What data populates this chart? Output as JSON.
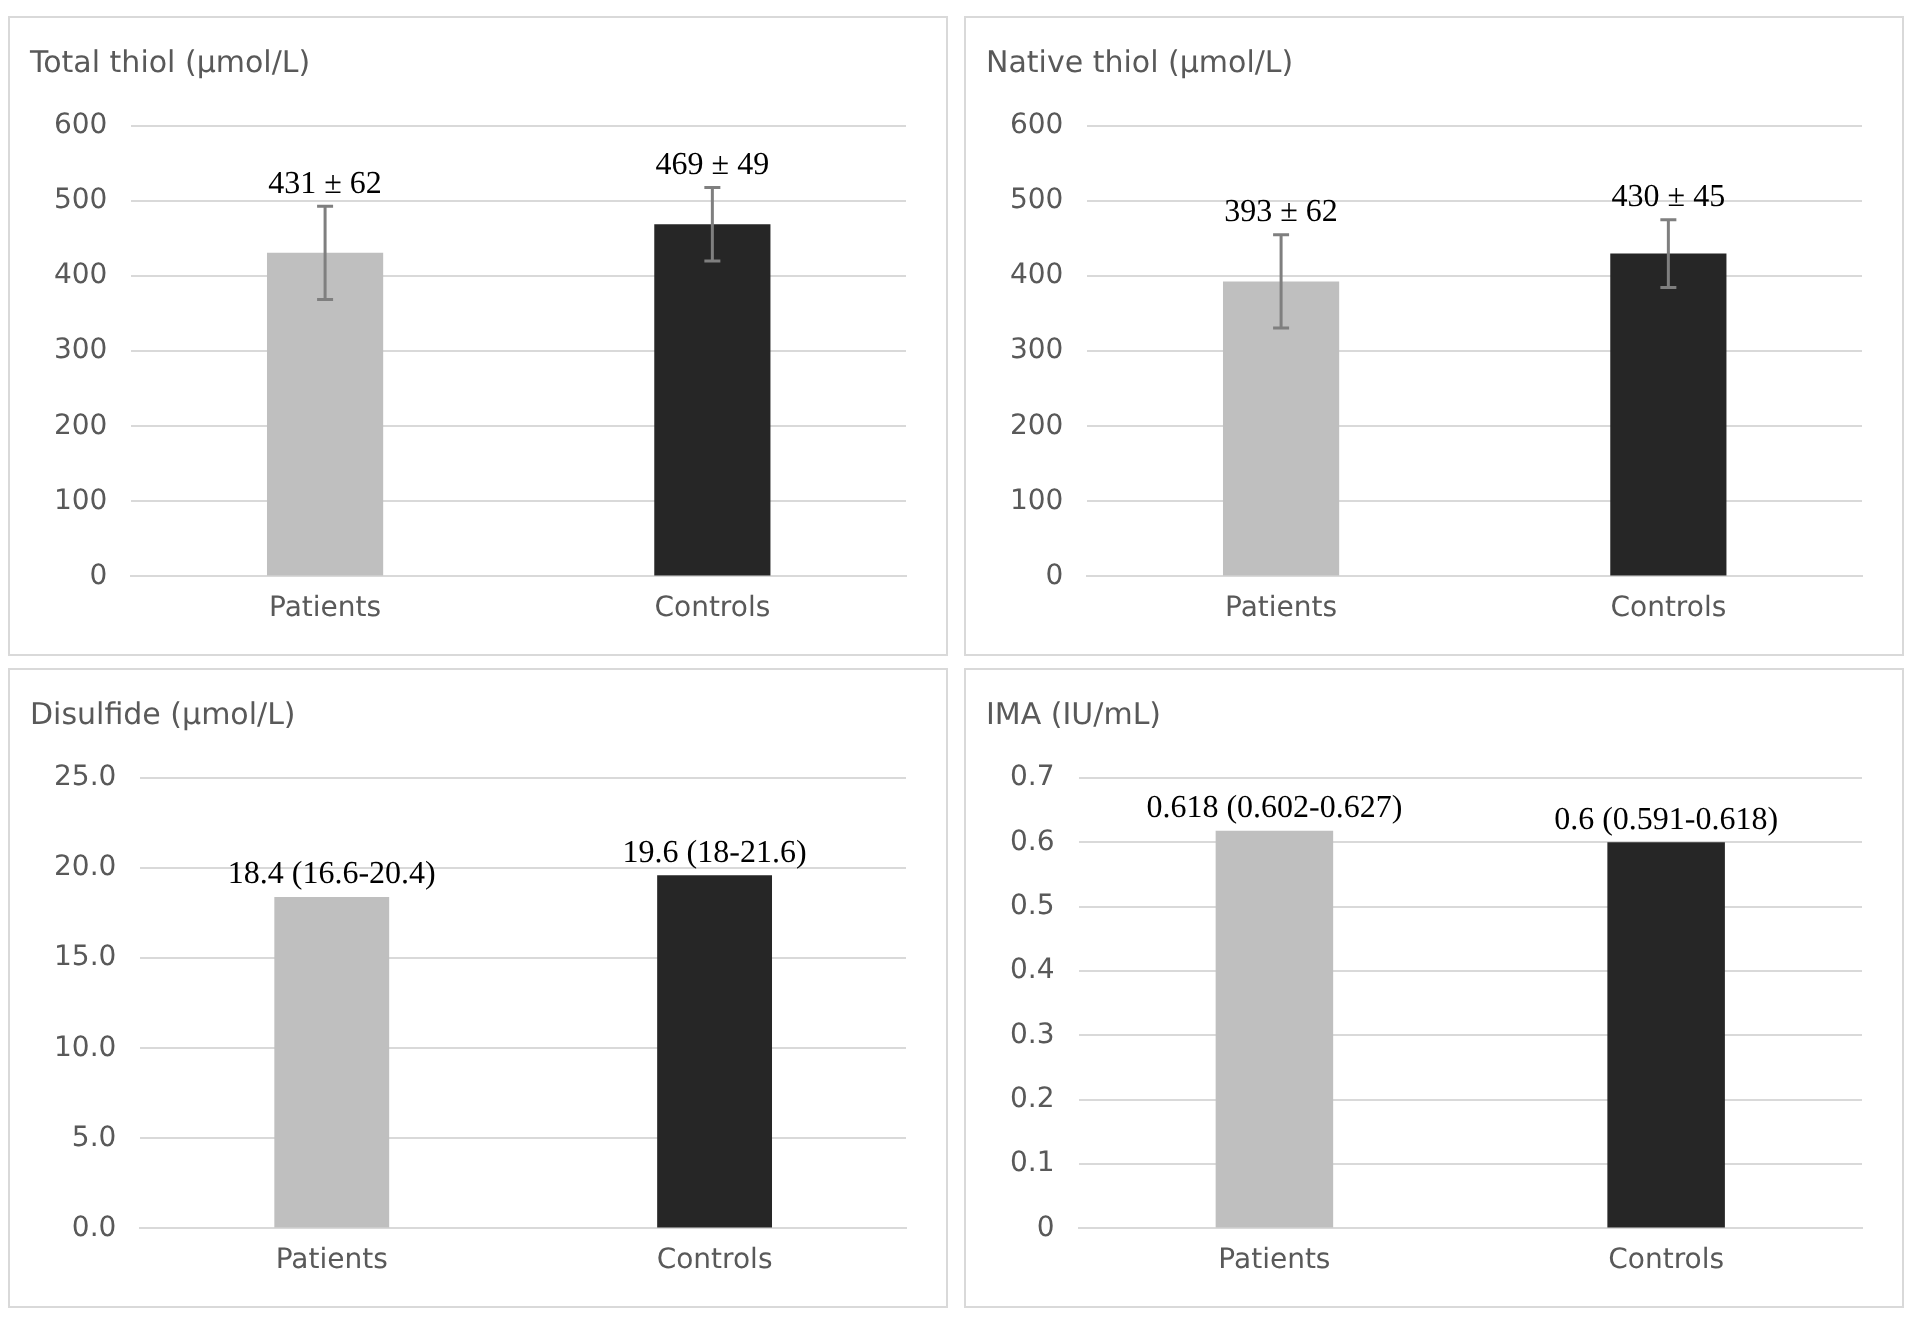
{
  "chart_data": [
    {
      "type": "bar",
      "title": "Total thiol (µmol/L)",
      "categories": [
        "Patients",
        "Controls"
      ],
      "values": [
        431,
        469
      ],
      "colors": [
        "#bfbfbf",
        "#262626"
      ],
      "errors": [
        62,
        49
      ],
      "value_labels": [
        "431 ± 62",
        "469 ± 49"
      ],
      "ylim": [
        0,
        600
      ],
      "yticks": [
        0,
        100,
        200,
        300,
        400,
        500,
        600
      ],
      "grid": "y"
    },
    {
      "type": "bar",
      "title": "Native thiol (µmol/L)",
      "categories": [
        "Patients",
        "Controls"
      ],
      "values": [
        393,
        430
      ],
      "colors": [
        "#bfbfbf",
        "#262626"
      ],
      "errors": [
        62,
        45
      ],
      "value_labels": [
        "393 ± 62",
        "430 ± 45"
      ],
      "ylim": [
        0,
        600
      ],
      "yticks": [
        0,
        100,
        200,
        300,
        400,
        500,
        600
      ],
      "grid": "y"
    },
    {
      "type": "bar",
      "title": "Disulfide (µmol/L)",
      "categories": [
        "Patients",
        "Controls"
      ],
      "values": [
        18.4,
        19.6
      ],
      "colors": [
        "#bfbfbf",
        "#262626"
      ],
      "value_labels": [
        "18.4 (16.6-20.4)",
        "19.6 (18-21.6)"
      ],
      "ylim": [
        0,
        25
      ],
      "yticks": [
        {
          "value": 0,
          "label": "0.0"
        },
        {
          "value": 5,
          "label": "5.0"
        },
        {
          "value": 10,
          "label": "10.0"
        },
        {
          "value": 15,
          "label": "15.0"
        },
        {
          "value": 20,
          "label": "20.0"
        },
        {
          "value": 25,
          "label": "25.0"
        }
      ],
      "grid": "y"
    },
    {
      "type": "bar",
      "title": "IMA (IU/mL)",
      "categories": [
        "Patients",
        "Controls"
      ],
      "values": [
        0.618,
        0.6
      ],
      "colors": [
        "#bfbfbf",
        "#262626"
      ],
      "value_labels": [
        "0.618 (0.602-0.627)",
        "0.6 (0.591-0.618)"
      ],
      "ylim": [
        0,
        0.7
      ],
      "yticks": [
        0,
        0.1,
        0.2,
        0.3,
        0.4,
        0.5,
        0.6,
        0.7
      ],
      "grid": "y"
    }
  ]
}
